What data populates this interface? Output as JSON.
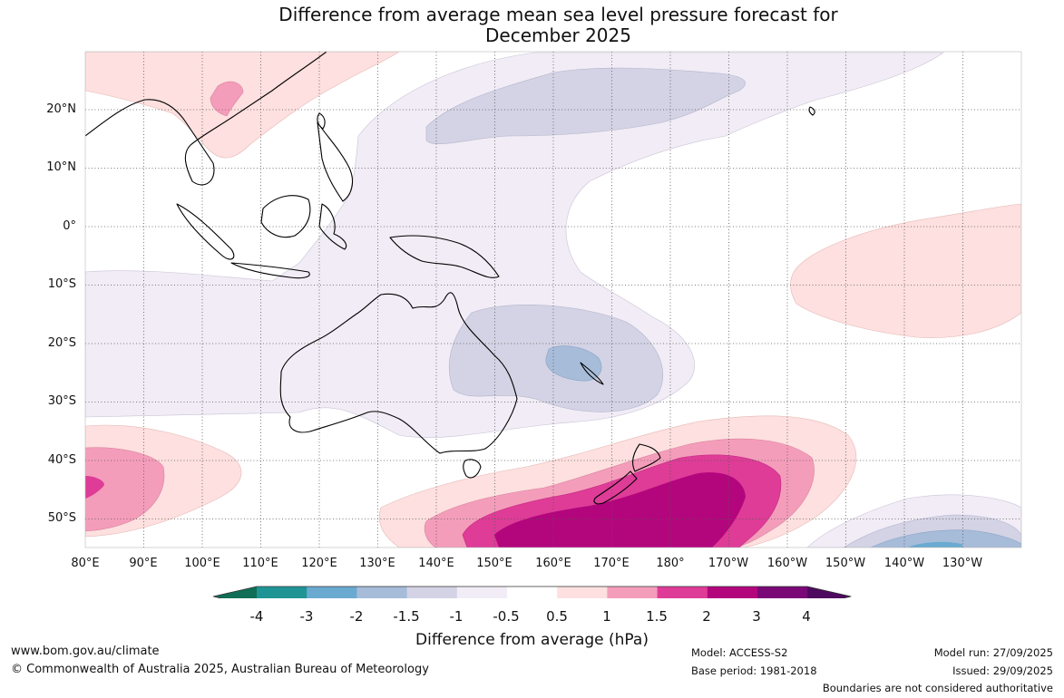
{
  "title": {
    "line1": "Difference from average mean sea level pressure forecast for",
    "line2": "December 2025"
  },
  "map": {
    "lat_labels": [
      "20°N",
      "10°N",
      "0°",
      "10°S",
      "20°S",
      "30°S",
      "40°S",
      "50°S"
    ],
    "lon_labels": [
      "80°E",
      "90°E",
      "100°E",
      "110°E",
      "120°E",
      "130°E",
      "140°E",
      "150°E",
      "160°E",
      "170°E",
      "180°",
      "170°W",
      "160°W",
      "150°W",
      "140°W",
      "130°W"
    ]
  },
  "colorbar": {
    "ticks": [
      "-4",
      "-3",
      "-2",
      "-1.5",
      "-1",
      "-0.5",
      "0.5",
      "1",
      "1.5",
      "2",
      "3",
      "4"
    ],
    "label": "Difference from average (hPa)",
    "colors": [
      "#0f6e55",
      "#1f9495",
      "#6aaad0",
      "#a6bcd9",
      "#d3d3e5",
      "#f1ecf5",
      "#ffffff",
      "#fde0df",
      "#f49dbb",
      "#de3c97",
      "#b3067d",
      "#7a0877",
      "#4d0a5e"
    ]
  },
  "footer": {
    "website": "www.bom.gov.au/climate",
    "copyright": "© Commonwealth of Australia 2025, Australian Bureau of Meteorology",
    "model": "Model: ACCESS-S2",
    "base_period": "Base period: 1981-2018",
    "model_run": "Model run: 27/09/2025",
    "issued": "Issued: 29/09/2025",
    "disclaimer": "Boundaries are not considered authoritative"
  }
}
